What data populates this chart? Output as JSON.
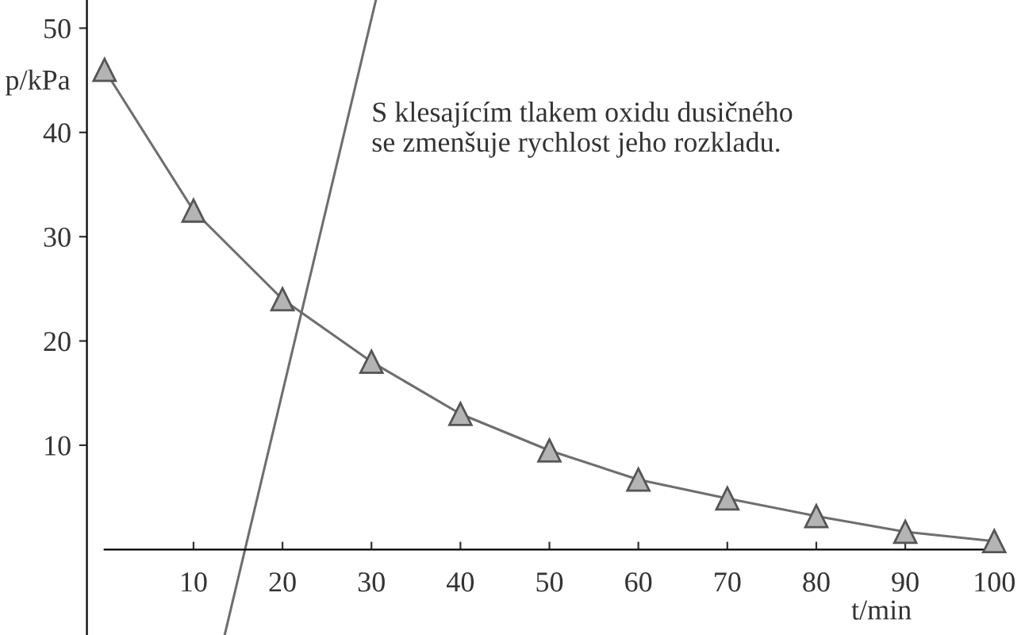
{
  "chart_data": {
    "type": "line",
    "xlabel": "t/min",
    "ylabel": "p/kPa",
    "annotations": [
      "S klesajícím tlakem oxidu dusičného\nse zmenšuje rychlost jeho rozkladu."
    ],
    "xlim": [
      0,
      100
    ],
    "ylim": [
      -8.2,
      52.7
    ],
    "xticks": [
      10,
      20,
      30,
      40,
      50,
      60,
      70,
      80,
      90,
      100
    ],
    "yticks": [
      10,
      20,
      30,
      40,
      50
    ],
    "grid": false,
    "legend": false,
    "marker": "triangle",
    "line_style": "solid",
    "series": [
      {
        "color": "#6e6e6e",
        "x": [
          0,
          10,
          20,
          30,
          40,
          50,
          60,
          70,
          80,
          90,
          100
        ],
        "values": [
          46,
          32.5,
          24,
          18,
          13,
          9.5,
          6.7,
          4.9,
          3.2,
          1.7,
          0.8
        ]
      },
      {
        "color": "#6e6e6e",
        "marker": "none",
        "x": [
          13.5,
          30.5
        ],
        "values": [
          -8.2,
          52.7
        ]
      }
    ]
  }
}
